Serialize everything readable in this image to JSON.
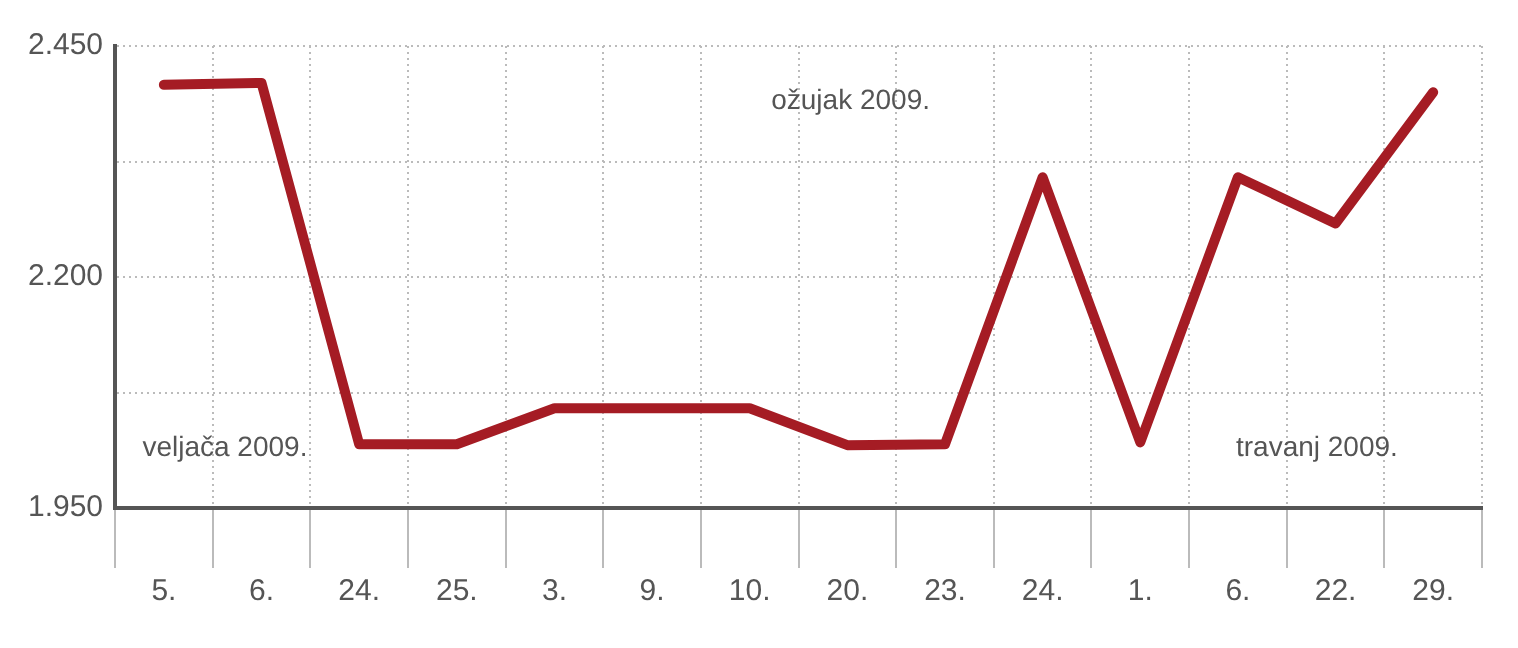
{
  "chart_data": {
    "type": "line",
    "categories": [
      "5.",
      "6.",
      "24.",
      "25.",
      "3.",
      "9.",
      "10.",
      "20.",
      "23.",
      "24.",
      "1.",
      "6.",
      "22.",
      "29."
    ],
    "series": [
      {
        "color": "#a51c24",
        "values": [
          2408,
          2410,
          2019,
          2019,
          2058,
          2058,
          2058,
          2018,
          2019,
          2308,
          2021,
          2308,
          2258,
          2400
        ]
      }
    ],
    "ylim": [
      1950,
      2450
    ],
    "yticks": [
      {
        "value": 1950,
        "label": "1.950"
      },
      {
        "value": 2075,
        "label": null
      },
      {
        "value": 2200,
        "label": "2.200"
      },
      {
        "value": 2325,
        "label": null
      },
      {
        "value": 2450,
        "label": "2.450"
      }
    ],
    "grid": true,
    "legend": false,
    "marker": "none",
    "line_style": "solid",
    "annotations": [
      "veljača 2009.",
      "ožujak 2009.",
      "travanj 2009."
    ]
  }
}
